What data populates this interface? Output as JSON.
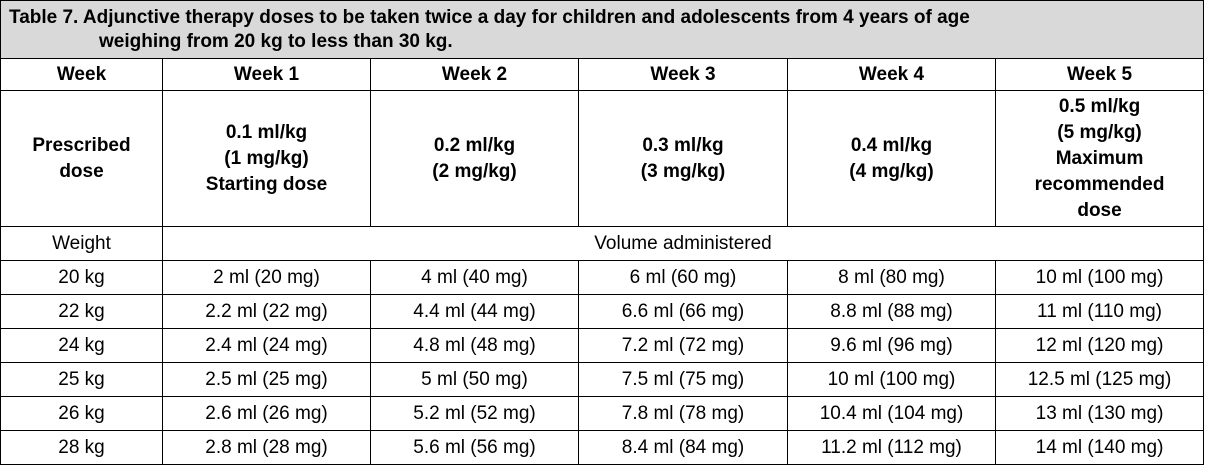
{
  "title": {
    "line1": "Table 7. Adjunctive therapy doses to be taken twice a day for children and adolescents from 4 years of age",
    "line2": "weighing from 20 kg to less than 30 kg."
  },
  "header": {
    "first": "Week",
    "weeks": [
      "Week 1",
      "Week 2",
      "Week 3",
      "Week 4",
      "Week 5"
    ]
  },
  "prescribed": {
    "label_lines": [
      "Prescribed",
      "dose"
    ],
    "doses": [
      [
        "0.1 ml/kg",
        "(1 mg/kg)",
        "Starting dose"
      ],
      [
        "0.2 ml/kg",
        "(2 mg/kg)"
      ],
      [
        "0.3 ml/kg",
        "(3 mg/kg)"
      ],
      [
        "0.4 ml/kg",
        "(4 mg/kg)"
      ],
      [
        "0.5 ml/kg",
        "(5 mg/kg)",
        "Maximum",
        "recommended",
        "dose"
      ]
    ]
  },
  "subheader": {
    "weight": "Weight",
    "volume": "Volume administered"
  },
  "rows": [
    {
      "weight": "20 kg",
      "values": [
        "2 ml (20 mg)",
        "4 ml (40 mg)",
        "6 ml (60 mg)",
        "8 ml (80 mg)",
        "10 ml (100 mg)"
      ]
    },
    {
      "weight": "22 kg",
      "values": [
        "2.2 ml (22 mg)",
        "4.4 ml (44 mg)",
        "6.6 ml (66 mg)",
        "8.8 ml (88 mg)",
        "11 ml (110 mg)"
      ]
    },
    {
      "weight": "24 kg",
      "values": [
        "2.4 ml (24 mg)",
        "4.8 ml (48 mg)",
        "7.2 ml (72 mg)",
        "9.6 ml (96 mg)",
        "12 ml (120 mg)"
      ]
    },
    {
      "weight": "25 kg",
      "values": [
        "2.5 ml (25 mg)",
        "5 ml (50 mg)",
        "7.5 ml (75 mg)",
        "10 ml (100 mg)",
        "12.5 ml (125 mg)"
      ]
    },
    {
      "weight": "26 kg",
      "values": [
        "2.6 ml (26 mg)",
        "5.2 ml (52 mg)",
        "7.8 ml (78 mg)",
        "10.4 ml (104 mg)",
        "13 ml (130 mg)"
      ]
    },
    {
      "weight": "28 kg",
      "values": [
        "2.8 ml (28 mg)",
        "5.6 ml (56 mg)",
        "8.4 ml (84 mg)",
        "11.2 ml (112 mg)",
        "14 ml (140 mg)"
      ]
    }
  ]
}
